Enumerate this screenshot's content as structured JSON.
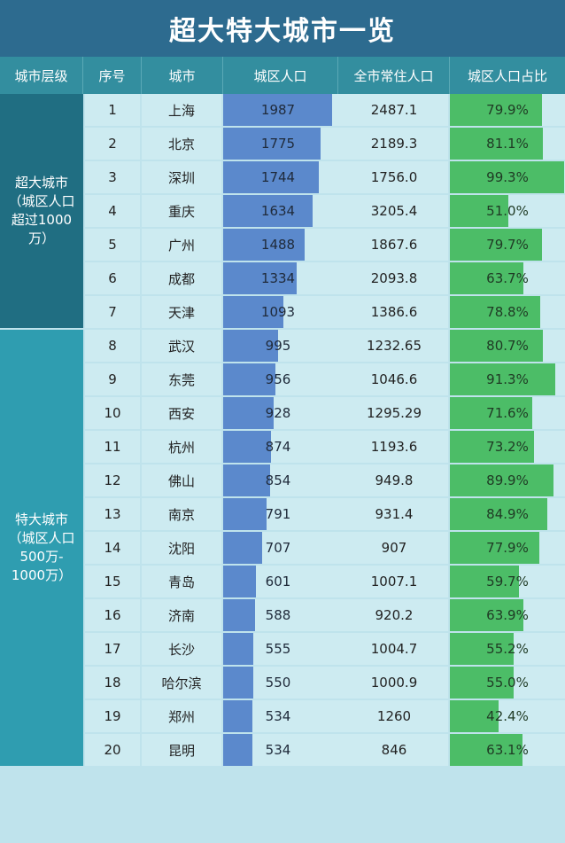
{
  "title": "超大特大城市一览",
  "headers": [
    "城市层级",
    "序号",
    "城市",
    "城区人口",
    "全市常住人口",
    "城区人口占比"
  ],
  "tiers": [
    {
      "label": "超大城市\n（城区人口\n超过1000\n万）",
      "rows": 7
    },
    {
      "label": "特大城市\n（城区人口\n500万-\n1000万）",
      "rows": 13
    }
  ],
  "colors": {
    "title_bg": "#2d6b8f",
    "header_bg": "#338e9f",
    "pop_bar": "#5b89cc",
    "ratio_bar": "#4cbd67"
  },
  "chart_data": {
    "type": "table",
    "title": "超大特大城市一览",
    "columns": [
      "城市层级",
      "序号",
      "城市",
      "城区人口",
      "全市常住人口",
      "城区人口占比"
    ],
    "pop_max": 2100,
    "ratio_max": 100,
    "rows": [
      {
        "idx": "1",
        "city": "上海",
        "pop": 1987,
        "total": "2487.1",
        "ratio": 79.9,
        "ratio_label": "79.9%"
      },
      {
        "idx": "2",
        "city": "北京",
        "pop": 1775,
        "total": "2189.3",
        "ratio": 81.1,
        "ratio_label": "81.1%"
      },
      {
        "idx": "3",
        "city": "深圳",
        "pop": 1744,
        "total": "1756.0",
        "ratio": 99.3,
        "ratio_label": "99.3%"
      },
      {
        "idx": "4",
        "city": "重庆",
        "pop": 1634,
        "total": "3205.4",
        "ratio": 51.0,
        "ratio_label": "51.0%"
      },
      {
        "idx": "5",
        "city": "广州",
        "pop": 1488,
        "total": "1867.6",
        "ratio": 79.7,
        "ratio_label": "79.7%"
      },
      {
        "idx": "6",
        "city": "成都",
        "pop": 1334,
        "total": "2093.8",
        "ratio": 63.7,
        "ratio_label": "63.7%"
      },
      {
        "idx": "7",
        "city": "天津",
        "pop": 1093,
        "total": "1386.6",
        "ratio": 78.8,
        "ratio_label": "78.8%"
      },
      {
        "idx": "8",
        "city": "武汉",
        "pop": 995,
        "total": "1232.65",
        "ratio": 80.7,
        "ratio_label": "80.7%"
      },
      {
        "idx": "9",
        "city": "东莞",
        "pop": 956,
        "total": "1046.6",
        "ratio": 91.3,
        "ratio_label": "91.3%"
      },
      {
        "idx": "10",
        "city": "西安",
        "pop": 928,
        "total": "1295.29",
        "ratio": 71.6,
        "ratio_label": "71.6%"
      },
      {
        "idx": "11",
        "city": "杭州",
        "pop": 874,
        "total": "1193.6",
        "ratio": 73.2,
        "ratio_label": "73.2%"
      },
      {
        "idx": "12",
        "city": "佛山",
        "pop": 854,
        "total": "949.8",
        "ratio": 89.9,
        "ratio_label": "89.9%"
      },
      {
        "idx": "13",
        "city": "南京",
        "pop": 791,
        "total": "931.4",
        "ratio": 84.9,
        "ratio_label": "84.9%"
      },
      {
        "idx": "14",
        "city": "沈阳",
        "pop": 707,
        "total": "907",
        "ratio": 77.9,
        "ratio_label": "77.9%"
      },
      {
        "idx": "15",
        "city": "青岛",
        "pop": 601,
        "total": "1007.1",
        "ratio": 59.7,
        "ratio_label": "59.7%"
      },
      {
        "idx": "16",
        "city": "济南",
        "pop": 588,
        "total": "920.2",
        "ratio": 63.9,
        "ratio_label": "63.9%"
      },
      {
        "idx": "17",
        "city": "长沙",
        "pop": 555,
        "total": "1004.7",
        "ratio": 55.2,
        "ratio_label": "55.2%"
      },
      {
        "idx": "18",
        "city": "哈尔滨",
        "pop": 550,
        "total": "1000.9",
        "ratio": 55.0,
        "ratio_label": "55.0%"
      },
      {
        "idx": "19",
        "city": "郑州",
        "pop": 534,
        "total": "1260",
        "ratio": 42.4,
        "ratio_label": "42.4%"
      },
      {
        "idx": "20",
        "city": "昆明",
        "pop": 534,
        "total": "846",
        "ratio": 63.1,
        "ratio_label": "63.1%"
      }
    ]
  }
}
